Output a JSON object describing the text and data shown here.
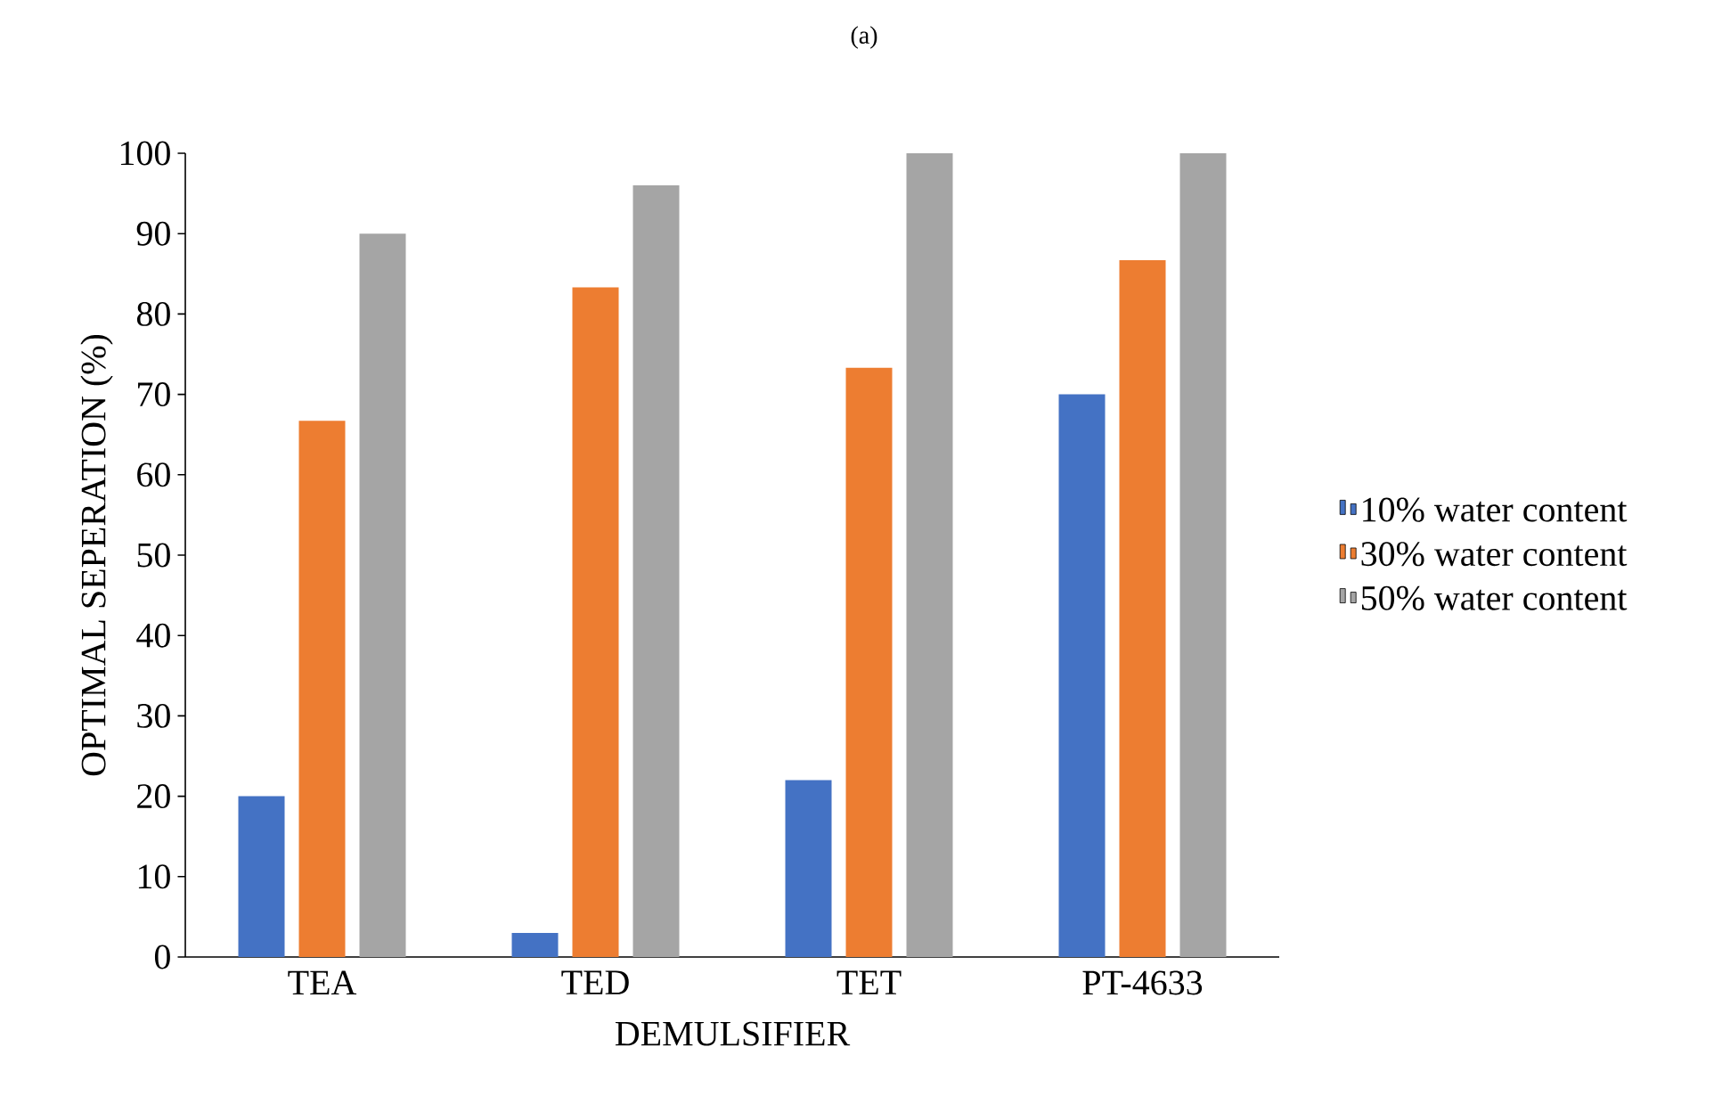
{
  "chart_data": {
    "type": "bar",
    "title": "(a)",
    "xlabel": "DEMULSIFIER",
    "ylabel": "OPTIMAL SEPERATION (%)",
    "categories": [
      "TEA",
      "TED",
      "TET",
      "PT-4633"
    ],
    "series": [
      {
        "name": "10% water content",
        "color": "#4472c4",
        "values": [
          20,
          3,
          22,
          70
        ]
      },
      {
        "name": "30% water content",
        "color": "#ed7d31",
        "values": [
          66.7,
          83.3,
          73.3,
          86.7
        ]
      },
      {
        "name": "50% water content",
        "color": "#a5a5a5",
        "values": [
          90,
          96,
          100,
          100
        ]
      }
    ],
    "ylim": [
      0,
      100
    ],
    "yticks": [
      0,
      10,
      20,
      30,
      40,
      50,
      60,
      70,
      80,
      90,
      100
    ],
    "grid": false,
    "legend": "right"
  }
}
